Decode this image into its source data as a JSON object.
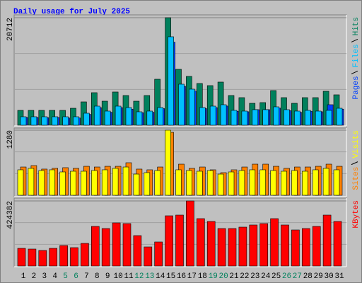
{
  "chart_data": [
    {
      "type": "bar",
      "title": "Daily usage for July 2025",
      "series": [
        {
          "name": "Hits",
          "color": "#00805c",
          "values": [
            2862,
            2862,
            2862,
            2862,
            2862,
            3271,
            4498,
            6270,
            4634,
            6406,
            5725,
            4634,
            5725,
            8860,
            20712,
            10768,
            9405,
            8042,
            7633,
            8314,
            5725,
            5316,
            4225,
            4362,
            6679,
            5316,
            4225,
            5316,
            5316,
            6542,
            5861
          ]
        },
        {
          "name": "Files",
          "color": "#00c0ff",
          "values": [
            1636,
            1636,
            1636,
            1636,
            1636,
            1636,
            2317,
            3680,
            2726,
            3680,
            3407,
            2590,
            2726,
            3407,
            17037,
            7905,
            6951,
            3407,
            3680,
            3953,
            2862,
            2726,
            2999,
            2999,
            3544,
            2999,
            2726,
            2862,
            2726,
            2862,
            3271
          ]
        },
        {
          "name": "Pages",
          "color": "#0040ff",
          "values": [
            1500,
            1500,
            1450,
            1500,
            1400,
            1400,
            2100,
            3400,
            2500,
            3400,
            3100,
            2400,
            2500,
            3200,
            16000,
            7500,
            6600,
            3200,
            3400,
            3700,
            2700,
            2600,
            2999,
            2999,
            3300,
            2800,
            2500,
            2700,
            2600,
            3953,
            3100
          ]
        }
      ],
      "ylim": [
        0,
        20712
      ],
      "yticks": [
        20712
      ]
    },
    {
      "type": "bar",
      "series": [
        {
          "name": "Visits",
          "color": "#ffff00",
          "values": [
            501,
            529,
            487,
            501,
            459,
            473,
            473,
            487,
            501,
            529,
            556,
            417,
            445,
            487,
            1280,
            501,
            487,
            473,
            487,
            417,
            459,
            487,
            501,
            501,
            487,
            473,
            487,
            473,
            501,
            529,
            501
          ]
        },
        {
          "name": "Sites",
          "color": "#ff8000",
          "values": [
            556,
            584,
            515,
            529,
            543,
            529,
            570,
            556,
            570,
            570,
            640,
            515,
            501,
            556,
            1238,
            612,
            529,
            556,
            501,
            445,
            501,
            556,
            612,
            612,
            570,
            529,
            556,
            556,
            570,
            612,
            570
          ]
        }
      ],
      "ylim": [
        0,
        1280
      ],
      "yticks": [
        1280
      ]
    },
    {
      "type": "bar",
      "categories": [
        "1",
        "2",
        "3",
        "4",
        "5",
        "6",
        "7",
        "8",
        "9",
        "10",
        "11",
        "12",
        "13",
        "14",
        "15",
        "16",
        "17",
        "18",
        "19",
        "20",
        "21",
        "22",
        "23",
        "24",
        "25",
        "26",
        "27",
        "28",
        "29",
        "30",
        "31"
      ],
      "category_colors": [
        "#000000",
        "#000000",
        "#000000",
        "#000000",
        "#00805c",
        "#00805c",
        "#000000",
        "#000000",
        "#000000",
        "#000000",
        "#000000",
        "#00805c",
        "#00805c",
        "#000000",
        "#000000",
        "#000000",
        "#000000",
        "#000000",
        "#00805c",
        "#00805c",
        "#000000",
        "#000000",
        "#000000",
        "#000000",
        "#000000",
        "#00805c",
        "#00805c",
        "#000000",
        "#000000",
        "#000000",
        "#000000"
      ],
      "series": [
        {
          "name": "KBytes",
          "color": "#ff0000",
          "values": [
            115325,
            110712,
            101486,
            115325,
            133777,
            119938,
            147616,
            258328,
            244489,
            281393,
            276780,
            198359,
            124551,
            156842,
            327523,
            332136,
            424382,
            309071,
            290619,
            244489,
            244489,
            253715,
            267554,
            276780,
            309071,
            267554,
            235263,
            244489,
            258328,
            332136,
            290619
          ]
        }
      ],
      "ylim": [
        0,
        424382
      ],
      "yticks": [
        424382
      ]
    }
  ]
}
